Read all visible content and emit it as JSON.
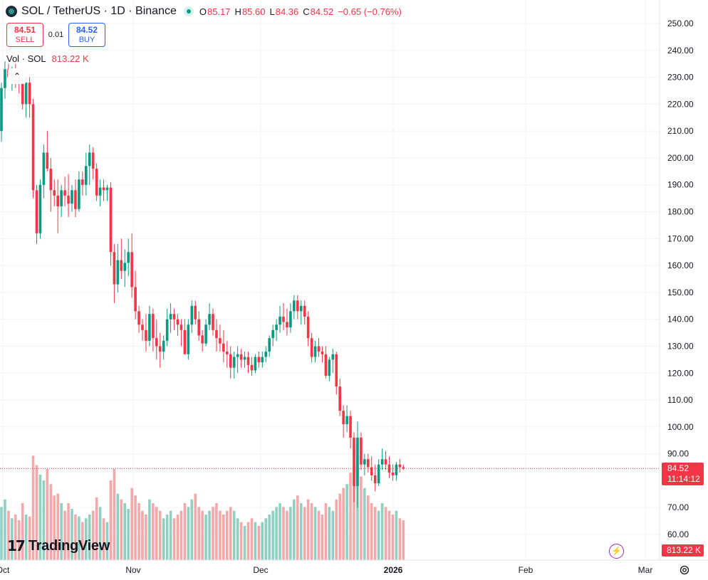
{
  "header": {
    "symbol_title": "SOL / TetherUS · 1D · Binance",
    "ohlc": {
      "o_label": "O",
      "o_value": "85.17",
      "h_label": "H",
      "h_value": "85.60",
      "l_label": "L",
      "l_value": "84.36",
      "c_label": "C",
      "c_value": "84.52",
      "change": "−0.65 (−0.76%)"
    }
  },
  "trade": {
    "sell_price": "84.51",
    "sell_label": "SELL",
    "spread": "0.01",
    "buy_price": "84.52",
    "buy_label": "BUY"
  },
  "volume_legend": {
    "label": "Vol · SOL",
    "value": "813.22 K"
  },
  "price_tag": {
    "price": "84.52",
    "countdown": "11:14:12"
  },
  "volume_tag": "813.22 K",
  "logo_text": "TradingView",
  "colors": {
    "up": "#089981",
    "down": "#f23645",
    "up_vol": "#8fd0c3",
    "down_vol": "#f4a8a9",
    "grid": "#f0f3fa"
  },
  "chart_data": {
    "type": "candlestick",
    "y_axis_ticks": [
      "250.00",
      "240.00",
      "230.00",
      "220.00",
      "210.00",
      "200.00",
      "190.00",
      "180.00",
      "170.00",
      "160.00",
      "150.00",
      "140.00",
      "130.00",
      "120.00",
      "110.00",
      "100.00",
      "90.00",
      "70.00",
      "60.00"
    ],
    "ylim": [
      55,
      255
    ],
    "x_axis_labels": [
      "Oct",
      "Nov",
      "Dec",
      "2026",
      "Feb",
      "Mar"
    ],
    "last_price": 84.52,
    "ohlcv": [
      [
        210,
        228,
        206,
        226,
        28
      ],
      [
        226,
        236,
        222,
        233,
        32
      ],
      [
        233,
        235,
        228,
        230,
        26
      ],
      [
        230,
        234,
        225,
        232,
        22
      ],
      [
        232,
        235,
        226,
        230,
        24
      ],
      [
        230,
        233,
        224,
        228,
        21
      ],
      [
        228,
        232,
        218,
        220,
        30
      ],
      [
        220,
        230,
        215,
        228,
        24
      ],
      [
        228,
        230,
        215,
        220,
        23
      ],
      [
        220,
        222,
        185,
        188,
        55
      ],
      [
        188,
        190,
        168,
        172,
        50
      ],
      [
        172,
        192,
        170,
        190,
        45
      ],
      [
        190,
        205,
        185,
        202,
        42
      ],
      [
        202,
        210,
        195,
        196,
        48
      ],
      [
        196,
        200,
        180,
        188,
        40
      ],
      [
        188,
        192,
        182,
        186,
        34
      ],
      [
        186,
        192,
        172,
        182,
        35
      ],
      [
        182,
        190,
        178,
        188,
        30
      ],
      [
        188,
        193,
        182,
        186,
        26
      ],
      [
        186,
        194,
        178,
        183,
        30
      ],
      [
        183,
        190,
        180,
        188,
        27
      ],
      [
        188,
        192,
        178,
        181,
        24
      ],
      [
        181,
        195,
        180,
        192,
        23
      ],
      [
        192,
        195,
        186,
        190,
        20
      ],
      [
        190,
        202,
        186,
        197,
        22
      ],
      [
        197,
        205,
        190,
        202,
        24
      ],
      [
        202,
        204,
        192,
        196,
        26
      ],
      [
        196,
        198,
        184,
        186,
        33
      ],
      [
        186,
        192,
        182,
        189,
        28
      ],
      [
        189,
        192,
        184,
        188,
        22
      ],
      [
        188,
        190,
        184,
        189,
        20
      ],
      [
        189,
        191,
        160,
        165,
        42
      ],
      [
        165,
        168,
        146,
        153,
        48
      ],
      [
        153,
        168,
        150,
        162,
        35
      ],
      [
        162,
        170,
        155,
        158,
        32
      ],
      [
        158,
        166,
        152,
        161,
        30
      ],
      [
        161,
        170,
        156,
        165,
        27
      ],
      [
        165,
        172,
        148,
        152,
        38
      ],
      [
        152,
        158,
        140,
        143,
        34
      ],
      [
        143,
        145,
        135,
        138,
        30
      ],
      [
        138,
        140,
        132,
        136,
        26
      ],
      [
        136,
        142,
        128,
        132,
        24
      ],
      [
        132,
        145,
        130,
        142,
        32
      ],
      [
        142,
        144,
        128,
        133,
        30
      ],
      [
        133,
        140,
        125,
        130,
        28
      ],
      [
        130,
        135,
        122,
        128,
        26
      ],
      [
        128,
        134,
        125,
        132,
        22
      ],
      [
        132,
        144,
        130,
        140,
        24
      ],
      [
        140,
        146,
        135,
        142,
        26
      ],
      [
        142,
        144,
        136,
        140,
        22
      ],
      [
        140,
        142,
        134,
        138,
        24
      ],
      [
        138,
        140,
        130,
        136,
        26
      ],
      [
        136,
        140,
        128,
        127,
        30
      ],
      [
        127,
        140,
        125,
        138,
        28
      ],
      [
        138,
        147,
        135,
        145,
        32
      ],
      [
        145,
        147,
        138,
        140,
        35
      ],
      [
        140,
        143,
        132,
        134,
        28
      ],
      [
        134,
        136,
        128,
        131,
        26
      ],
      [
        131,
        140,
        130,
        138,
        24
      ],
      [
        138,
        146,
        136,
        142,
        26
      ],
      [
        142,
        144,
        134,
        136,
        28
      ],
      [
        136,
        140,
        128,
        133,
        30
      ],
      [
        133,
        138,
        128,
        131,
        26
      ],
      [
        131,
        136,
        124,
        128,
        24
      ],
      [
        128,
        132,
        122,
        127,
        26
      ],
      [
        127,
        130,
        118,
        122,
        28
      ],
      [
        122,
        128,
        118,
        126,
        26
      ],
      [
        126,
        130,
        120,
        127,
        22
      ],
      [
        127,
        129,
        122,
        125,
        20
      ],
      [
        125,
        128,
        122,
        126,
        18
      ],
      [
        126,
        128,
        120,
        123,
        20
      ],
      [
        123,
        126,
        119,
        121,
        22
      ],
      [
        121,
        127,
        120,
        126,
        20
      ],
      [
        126,
        128,
        122,
        124,
        18
      ],
      [
        124,
        128,
        122,
        126,
        20
      ],
      [
        126,
        130,
        124,
        128,
        22
      ],
      [
        128,
        134,
        126,
        133,
        24
      ],
      [
        133,
        138,
        130,
        136,
        26
      ],
      [
        136,
        140,
        132,
        138,
        28
      ],
      [
        138,
        145,
        135,
        141,
        30
      ],
      [
        141,
        146,
        136,
        139,
        28
      ],
      [
        139,
        144,
        134,
        137,
        26
      ],
      [
        137,
        146,
        135,
        143,
        28
      ],
      [
        143,
        149,
        140,
        147,
        32
      ],
      [
        147,
        149,
        140,
        143,
        34
      ],
      [
        143,
        147,
        138,
        145,
        30
      ],
      [
        145,
        147,
        138,
        141,
        28
      ],
      [
        141,
        143,
        130,
        133,
        32
      ],
      [
        133,
        135,
        124,
        126,
        30
      ],
      [
        126,
        132,
        124,
        130,
        28
      ],
      [
        130,
        133,
        126,
        128,
        26
      ],
      [
        128,
        130,
        124,
        127,
        24
      ],
      [
        127,
        130,
        118,
        119,
        30
      ],
      [
        119,
        126,
        117,
        125,
        28
      ],
      [
        125,
        129,
        120,
        127,
        26
      ],
      [
        127,
        128,
        112,
        115,
        32
      ],
      [
        115,
        118,
        104,
        106,
        35
      ],
      [
        106,
        108,
        96,
        101,
        38
      ],
      [
        101,
        108,
        98,
        104,
        40
      ],
      [
        104,
        106,
        92,
        96,
        46
      ],
      [
        96,
        98,
        72,
        78,
        60
      ],
      [
        78,
        102,
        70,
        96,
        55
      ],
      [
        96,
        98,
        84,
        86,
        44
      ],
      [
        86,
        90,
        82,
        88,
        38
      ],
      [
        88,
        90,
        83,
        85,
        34
      ],
      [
        85,
        89,
        80,
        82,
        30
      ],
      [
        82,
        86,
        76,
        79,
        28
      ],
      [
        79,
        88,
        78,
        86,
        26
      ],
      [
        86,
        92,
        84,
        88,
        30
      ],
      [
        88,
        91,
        84,
        86,
        28
      ],
      [
        86,
        89,
        81,
        83,
        26
      ],
      [
        83,
        86,
        80,
        82,
        24
      ],
      [
        82,
        87,
        80,
        86,
        26
      ],
      [
        86,
        88,
        83,
        85,
        22
      ],
      [
        85,
        86,
        84,
        84.5,
        21
      ]
    ]
  }
}
